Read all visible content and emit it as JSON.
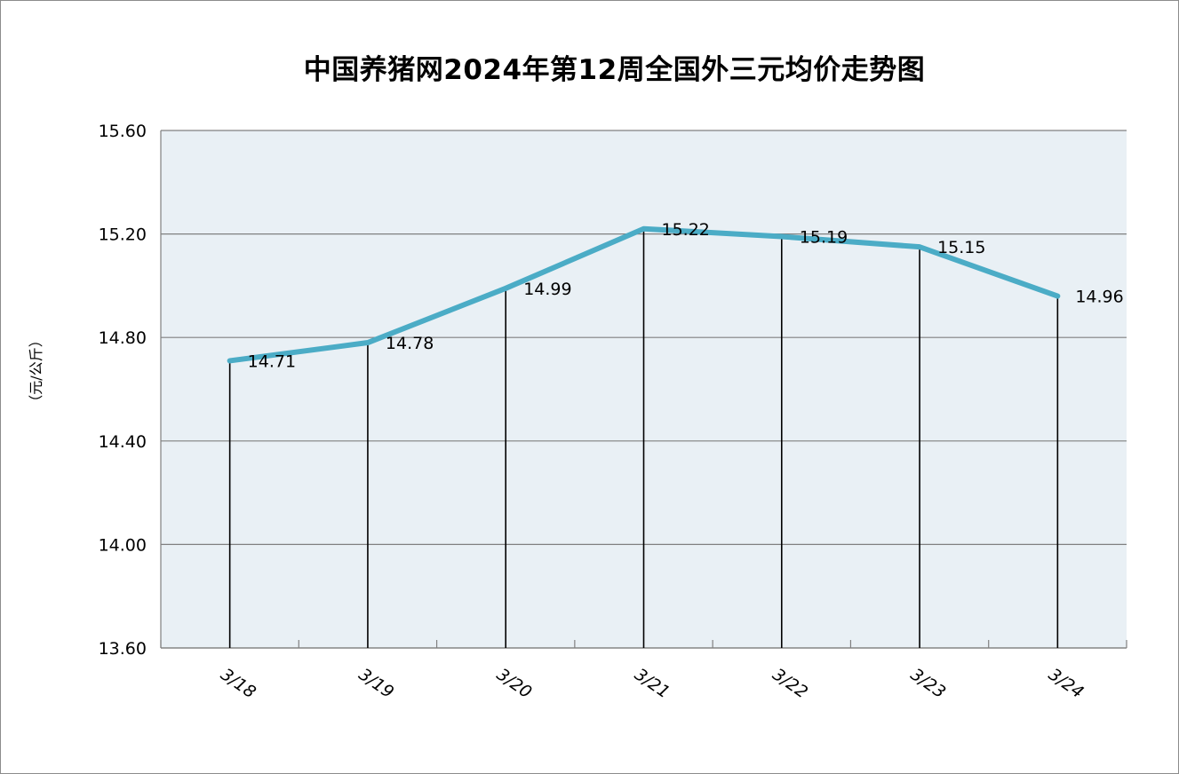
{
  "chart_data": {
    "type": "line",
    "title": "中国养猪网2024年第12周全国外三元均价走势图",
    "ylabel": "（元/公斤）",
    "xlabel": "",
    "categories": [
      "3/18",
      "3/19",
      "3/20",
      "3/21",
      "3/22",
      "3/23",
      "3/24"
    ],
    "values": [
      14.71,
      14.78,
      14.99,
      15.22,
      15.19,
      15.15,
      14.96
    ],
    "value_labels": [
      "14.71",
      "14.78",
      "14.99",
      "15.22",
      "15.19",
      "15.15",
      "14.96"
    ],
    "ylim": [
      13.6,
      15.6
    ],
    "yticks": [
      "13.60",
      "14.00",
      "14.40",
      "14.80",
      "15.20",
      "15.60"
    ],
    "ytick_values": [
      13.6,
      14.0,
      14.4,
      14.8,
      15.2,
      15.6
    ],
    "grid": true,
    "drop_lines": true,
    "colors": {
      "line": "#4BACC6",
      "plot_bg": "#E9F0F5",
      "grid": "#808080"
    }
  }
}
